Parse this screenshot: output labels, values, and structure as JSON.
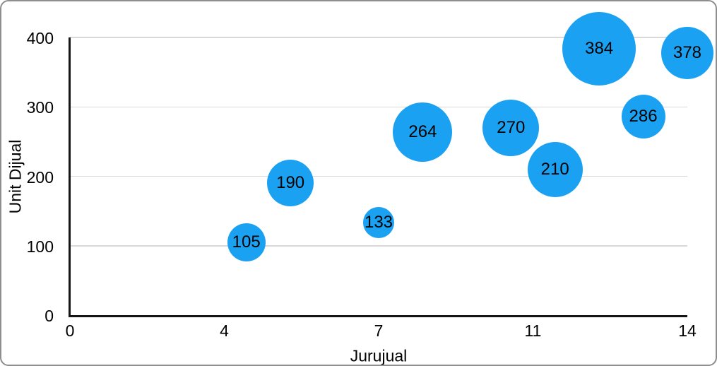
{
  "chart_data": {
    "type": "scatter",
    "subtype": "bubble",
    "title": "",
    "xlabel": "Jurujual",
    "ylabel": "Unit Dijual",
    "xlim": [
      0,
      14
    ],
    "ylim": [
      0,
      400
    ],
    "grid": "horizontal-only",
    "legend": "none",
    "x_ticks": [
      {
        "value": 0,
        "label": "0"
      },
      {
        "value": 3.5,
        "label": "4"
      },
      {
        "value": 7,
        "label": "7"
      },
      {
        "value": 10.5,
        "label": "11"
      },
      {
        "value": 14,
        "label": "14"
      }
    ],
    "y_ticks": [
      {
        "value": 0,
        "label": "0"
      },
      {
        "value": 100,
        "label": "100"
      },
      {
        "value": 200,
        "label": "200"
      },
      {
        "value": 300,
        "label": "300"
      },
      {
        "value": 400,
        "label": "400"
      }
    ],
    "points": [
      {
        "x": 4,
        "y": 105,
        "label": "105",
        "radius_px": 27
      },
      {
        "x": 5,
        "y": 190,
        "label": "190",
        "radius_px": 33
      },
      {
        "x": 7,
        "y": 133,
        "label": "133",
        "radius_px": 22
      },
      {
        "x": 8,
        "y": 264,
        "label": "264",
        "radius_px": 42
      },
      {
        "x": 10,
        "y": 270,
        "label": "270",
        "radius_px": 40
      },
      {
        "x": 11,
        "y": 210,
        "label": "210",
        "radius_px": 39
      },
      {
        "x": 12,
        "y": 384,
        "label": "384",
        "radius_px": 52
      },
      {
        "x": 13,
        "y": 286,
        "label": "286",
        "radius_px": 31
      },
      {
        "x": 14,
        "y": 378,
        "label": "378",
        "radius_px": 37
      }
    ],
    "colors": {
      "bubble": "#1BA1F2",
      "bubble_label": "#000000",
      "gridline": "#D9D9D9",
      "axis_line": "#141414",
      "tick_text": "#000000",
      "frame_border": "#8E8E8E",
      "background": "#FFFFFF"
    }
  }
}
